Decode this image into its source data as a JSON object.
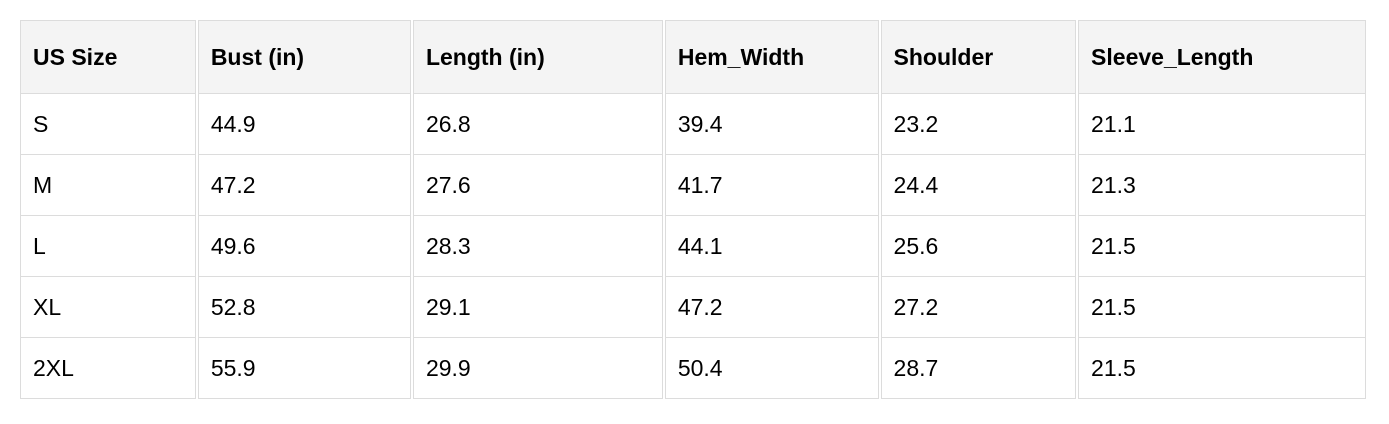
{
  "table": {
    "headers": [
      "US Size",
      "Bust (in)",
      "Length (in)",
      "Hem_Width",
      "Shoulder",
      "Sleeve_Length"
    ],
    "rows": [
      [
        "S",
        "44.9",
        "26.8",
        "39.4",
        "23.2",
        "21.1"
      ],
      [
        "M",
        "47.2",
        "27.6",
        "41.7",
        "24.4",
        "21.3"
      ],
      [
        "L",
        "49.6",
        "28.3",
        "44.1",
        "25.6",
        "21.5"
      ],
      [
        "XL",
        "52.8",
        "29.1",
        "47.2",
        "27.2",
        "21.5"
      ],
      [
        "2XL",
        "55.9",
        "29.9",
        "50.4",
        "28.7",
        "21.5"
      ]
    ]
  }
}
